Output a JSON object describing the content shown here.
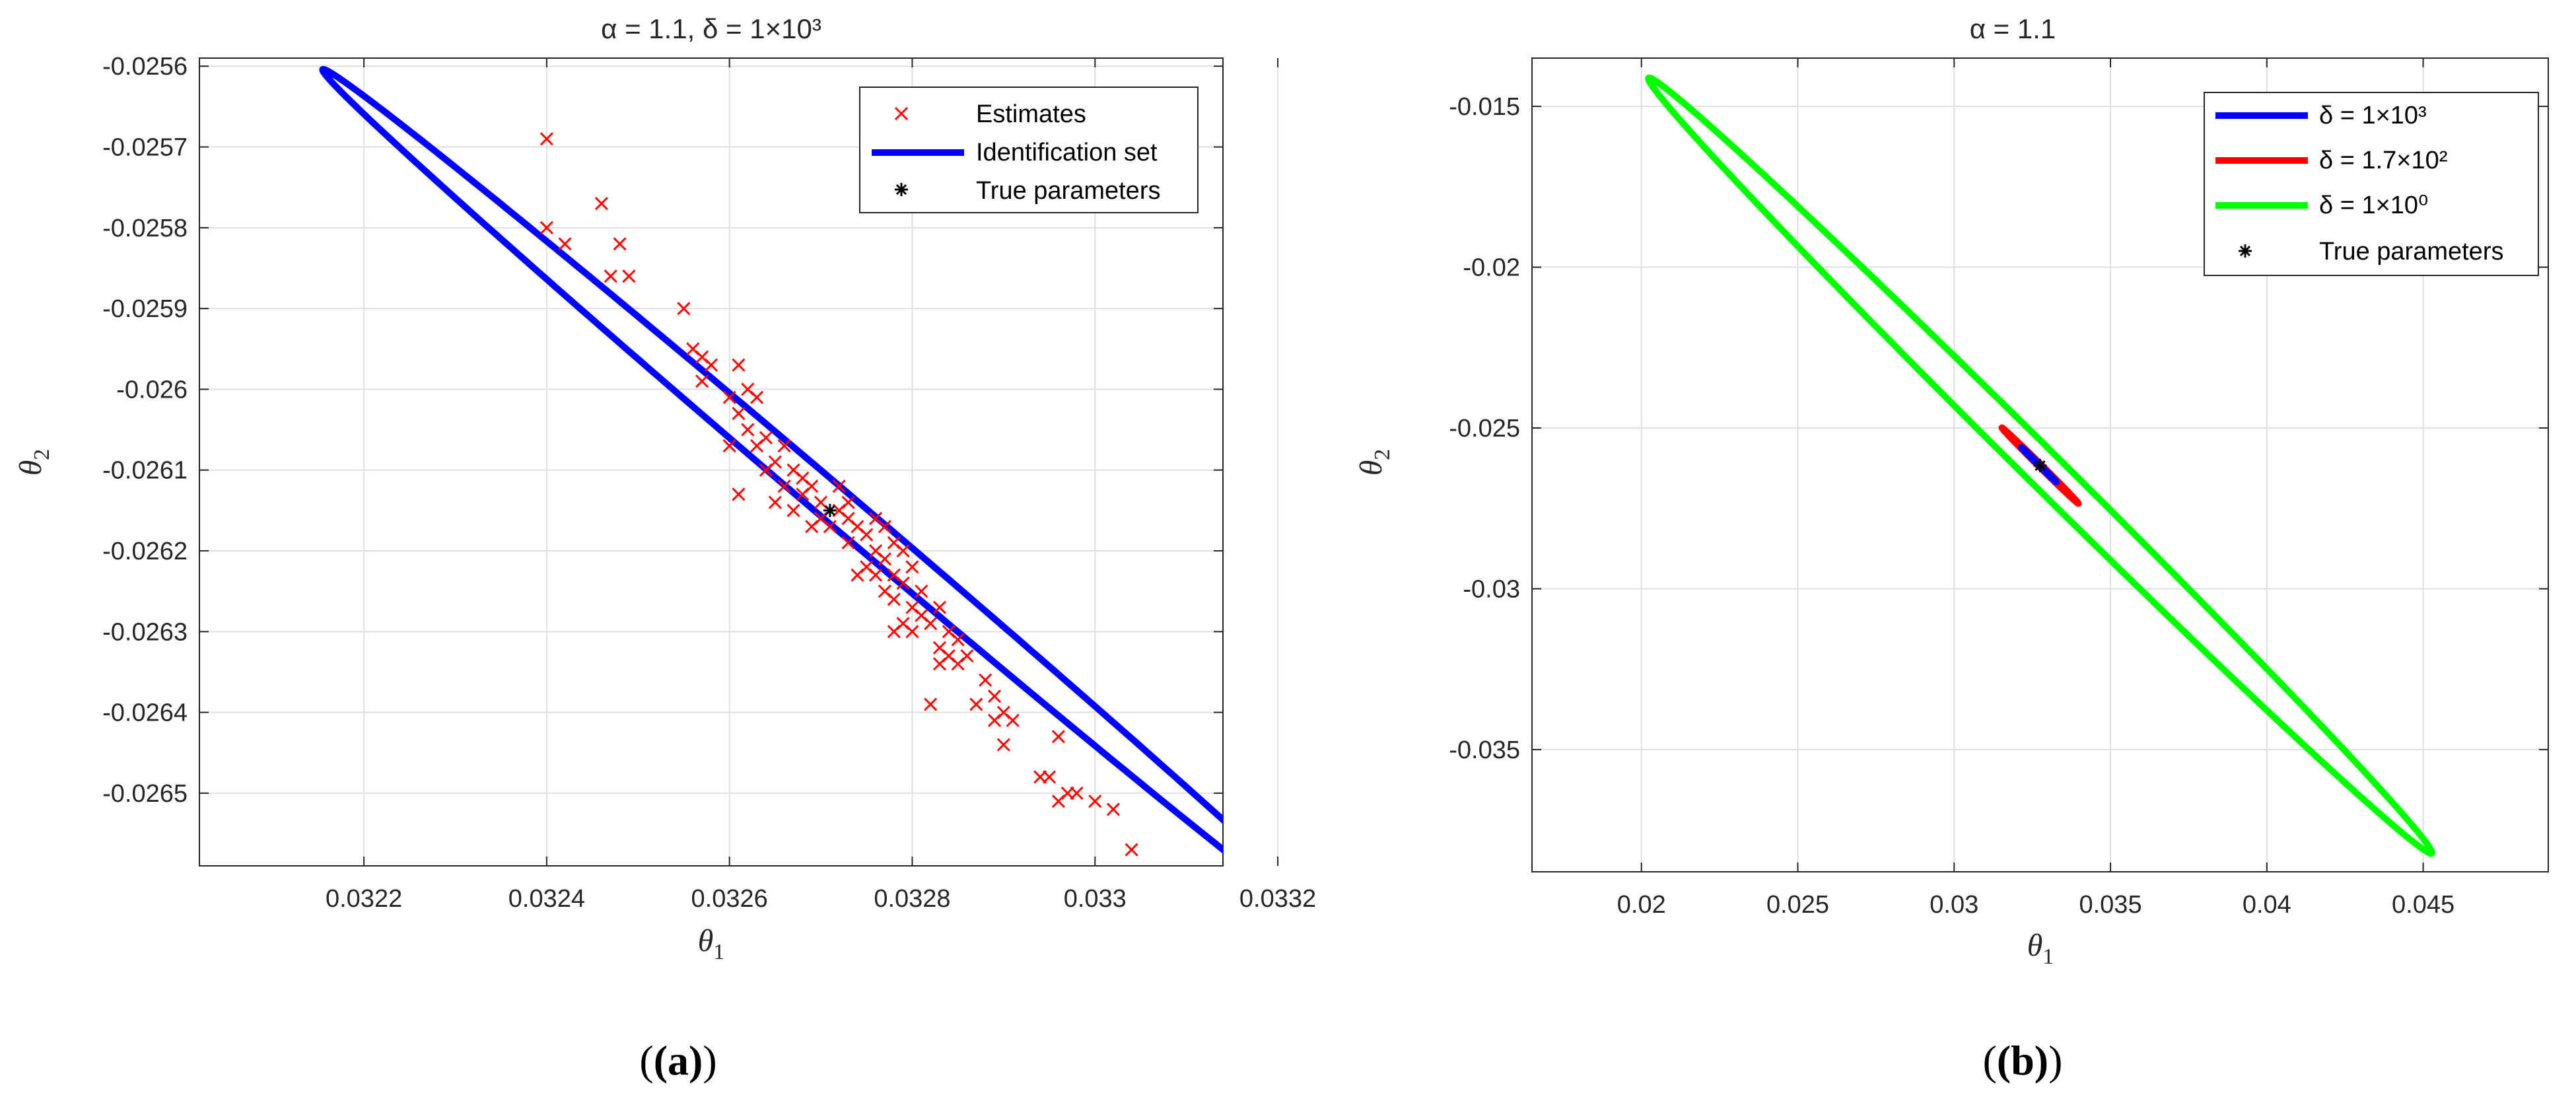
{
  "captions": [
    "(a)",
    "(b)"
  ],
  "chart_data": [
    {
      "type": "scatter",
      "title": "α = 1.1, δ = 1×10³",
      "xlabel": "θ1",
      "ylabel": "θ2",
      "xlim": [
        0.03202,
        0.03314
      ],
      "ylim": [
        -0.02659,
        -0.02559
      ],
      "xticks": [
        0.0322,
        0.0324,
        0.0326,
        0.0328,
        0.033,
        0.0332
      ],
      "xtick_labels": [
        "0.0322",
        "0.0324",
        "0.0326",
        "0.0328",
        "0.033",
        "0.0332"
      ],
      "yticks": [
        -0.0256,
        -0.0257,
        -0.0258,
        -0.0259,
        -0.026,
        -0.0261,
        -0.0262,
        -0.0263,
        -0.0264,
        -0.0265
      ],
      "ytick_labels": [
        "-0.0256",
        "-0.0257",
        "-0.0258",
        "-0.0259",
        "-0.026",
        "-0.0261",
        "-0.0262",
        "-0.0263",
        "-0.0264",
        "-0.0265"
      ],
      "grid": true,
      "legend_position": "top-right",
      "legend": [
        "Estimates",
        "Identification set",
        "True parameters"
      ],
      "series": [
        {
          "name": "Estimates",
          "type": "scatter",
          "marker": "x",
          "color": "#ff0000",
          "points": [
            [
              0.03227,
              -0.02558
            ],
            [
              0.0324,
              -0.02569
            ],
            [
              0.03246,
              -0.02577
            ],
            [
              0.0324,
              -0.0258
            ],
            [
              0.03242,
              -0.02582
            ],
            [
              0.03248,
              -0.02582
            ],
            [
              0.03247,
              -0.02586
            ],
            [
              0.03249,
              -0.02586
            ],
            [
              0.03255,
              -0.0259
            ],
            [
              0.03256,
              -0.02595
            ],
            [
              0.03257,
              -0.02596
            ],
            [
              0.03258,
              -0.02597
            ],
            [
              0.03257,
              -0.02599
            ],
            [
              0.03261,
              -0.02597
            ],
            [
              0.03262,
              -0.026
            ],
            [
              0.0326,
              -0.02601
            ],
            [
              0.03263,
              -0.02601
            ],
            [
              0.03261,
              -0.02603
            ],
            [
              0.03262,
              -0.02605
            ],
            [
              0.03264,
              -0.02606
            ],
            [
              0.0326,
              -0.02607
            ],
            [
              0.03263,
              -0.02607
            ],
            [
              0.03266,
              -0.02607
            ],
            [
              0.03265,
              -0.02609
            ],
            [
              0.03264,
              -0.0261
            ],
            [
              0.03267,
              -0.0261
            ],
            [
              0.03268,
              -0.02611
            ],
            [
              0.03266,
              -0.02612
            ],
            [
              0.03269,
              -0.02612
            ],
            [
              0.03268,
              -0.02613
            ],
            [
              0.03265,
              -0.02614
            ],
            [
              0.03261,
              -0.02613
            ],
            [
              0.0327,
              -0.02614
            ],
            [
              0.03272,
              -0.02612
            ],
            [
              0.03273,
              -0.02614
            ],
            [
              0.03272,
              -0.02615
            ],
            [
              0.0327,
              -0.02616
            ],
            [
              0.03273,
              -0.02616
            ],
            [
              0.03271,
              -0.02617
            ],
            [
              0.03274,
              -0.02617
            ],
            [
              0.03276,
              -0.02616
            ],
            [
              0.03267,
              -0.02615
            ],
            [
              0.03269,
              -0.02617
            ],
            [
              0.03275,
              -0.02618
            ],
            [
              0.03277,
              -0.02617
            ],
            [
              0.03273,
              -0.02619
            ],
            [
              0.03276,
              -0.0262
            ],
            [
              0.03278,
              -0.02619
            ],
            [
              0.03277,
              -0.02621
            ],
            [
              0.03275,
              -0.02622
            ],
            [
              0.03279,
              -0.0262
            ],
            [
              0.0328,
              -0.02622
            ],
            [
              0.03278,
              -0.02623
            ],
            [
              0.03276,
              -0.02623
            ],
            [
              0.03274,
              -0.02623
            ],
            [
              0.03279,
              -0.02624
            ],
            [
              0.03277,
              -0.02625
            ],
            [
              0.03281,
              -0.02625
            ],
            [
              0.03278,
              -0.02626
            ],
            [
              0.0328,
              -0.02627
            ],
            [
              0.03283,
              -0.02627
            ],
            [
              0.03281,
              -0.02628
            ],
            [
              0.03279,
              -0.02629
            ],
            [
              0.03282,
              -0.02629
            ],
            [
              0.0328,
              -0.0263
            ],
            [
              0.03284,
              -0.0263
            ],
            [
              0.03278,
              -0.0263
            ],
            [
              0.03285,
              -0.02631
            ],
            [
              0.03283,
              -0.02632
            ],
            [
              0.03284,
              -0.02633
            ],
            [
              0.03286,
              -0.02633
            ],
            [
              0.03285,
              -0.02634
            ],
            [
              0.03283,
              -0.02634
            ],
            [
              0.03288,
              -0.02636
            ],
            [
              0.03289,
              -0.02638
            ],
            [
              0.03287,
              -0.02639
            ],
            [
              0.03282,
              -0.02639
            ],
            [
              0.0329,
              -0.0264
            ],
            [
              0.03291,
              -0.02641
            ],
            [
              0.03289,
              -0.02641
            ],
            [
              0.0329,
              -0.02644
            ],
            [
              0.03296,
              -0.02643
            ],
            [
              0.03294,
              -0.02648
            ],
            [
              0.03295,
              -0.02648
            ],
            [
              0.03298,
              -0.0265
            ],
            [
              0.03297,
              -0.0265
            ],
            [
              0.03296,
              -0.02651
            ],
            [
              0.033,
              -0.02651
            ],
            [
              0.03302,
              -0.02652
            ],
            [
              0.03304,
              -0.02657
            ]
          ]
        },
        {
          "name": "Identification set",
          "type": "ellipse",
          "color": "#0000ff",
          "center": [
            0.032714,
            -0.026142
          ],
          "semi_major": 0.000776,
          "semi_minor": 2.05e-05,
          "angle_deg": -43.9
        },
        {
          "name": "True parameters",
          "type": "scatter",
          "marker": "*",
          "color": "#000000",
          "points": [
            [
              0.03271,
              -0.02615
            ]
          ]
        }
      ]
    },
    {
      "type": "scatter",
      "title": "α = 1.1",
      "xlabel": "θ1",
      "ylabel": "θ2",
      "xlim": [
        0.0165,
        0.049
      ],
      "ylim": [
        -0.0388,
        -0.0135
      ],
      "xticks": [
        0.02,
        0.025,
        0.03,
        0.035,
        0.04,
        0.045
      ],
      "xtick_labels": [
        "0.02",
        "0.025",
        "0.03",
        "0.035",
        "0.04",
        "0.045"
      ],
      "yticks": [
        -0.015,
        -0.02,
        -0.025,
        -0.03,
        -0.035
      ],
      "ytick_labels": [
        "-0.015",
        "-0.02",
        "-0.025",
        "-0.03",
        "-0.035"
      ],
      "grid": true,
      "legend_position": "top-right",
      "legend": [
        "δ = 1×10³",
        "δ = 1.7×10²",
        "δ = 1×10⁰",
        "True parameters"
      ],
      "series": [
        {
          "name": "δ = 1×10³",
          "type": "ellipse",
          "color": "#0000ff",
          "center": [
            0.03271,
            -0.02614
          ],
          "semi_major": 0.00078,
          "semi_minor": 2e-05,
          "angle_deg": -43.9
        },
        {
          "name": "δ = 1.7×10²",
          "type": "ellipse",
          "color": "#ff0000",
          "center": [
            0.03275,
            -0.02617
          ],
          "semi_major": 0.0017,
          "semi_minor": 4.5e-05,
          "angle_deg": -43.9
        },
        {
          "name": "δ = 1×10⁰",
          "type": "ellipse",
          "color": "#00ff00",
          "center": [
            0.03275,
            -0.02617
          ],
          "semi_major": 0.01738,
          "semi_minor": 0.00057,
          "angle_deg": -43.9
        },
        {
          "name": "True parameters",
          "type": "scatter",
          "marker": "*",
          "color": "#000000",
          "points": [
            [
              0.03275,
              -0.02617
            ]
          ]
        }
      ]
    }
  ]
}
